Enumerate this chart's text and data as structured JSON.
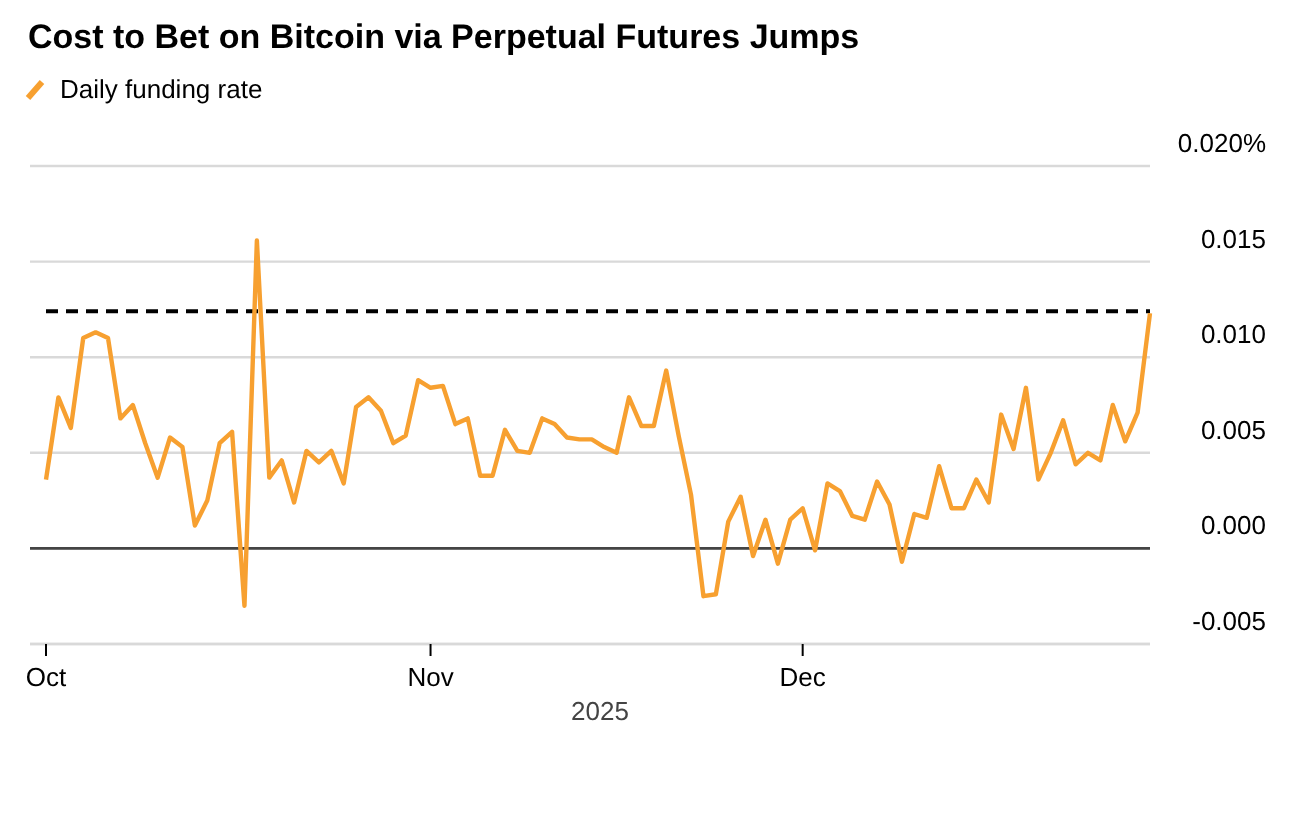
{
  "chart_data": {
    "type": "line",
    "title": "Cost to Bet on Bitcoin via Perpetual Futures Jumps",
    "xlabel": "2025",
    "x": [
      "2025-10-01",
      "2025-10-02",
      "2025-10-03",
      "2025-10-04",
      "2025-10-05",
      "2025-10-06",
      "2025-10-07",
      "2025-10-08",
      "2025-10-09",
      "2025-10-10",
      "2025-10-11",
      "2025-10-12",
      "2025-10-13",
      "2025-10-14",
      "2025-10-15",
      "2025-10-16",
      "2025-10-17",
      "2025-10-18",
      "2025-10-19",
      "2025-10-20",
      "2025-10-21",
      "2025-10-22",
      "2025-10-23",
      "2025-10-24",
      "2025-10-25",
      "2025-10-26",
      "2025-10-27",
      "2025-10-28",
      "2025-10-29",
      "2025-10-30",
      "2025-10-31",
      "2025-11-01",
      "2025-11-02",
      "2025-11-03",
      "2025-11-04",
      "2025-11-05",
      "2025-11-06",
      "2025-11-07",
      "2025-11-08",
      "2025-11-09",
      "2025-11-10",
      "2025-11-11",
      "2025-11-12",
      "2025-11-13",
      "2025-11-14",
      "2025-11-15",
      "2025-11-16",
      "2025-11-17",
      "2025-11-18",
      "2025-11-19",
      "2025-11-20",
      "2025-11-21",
      "2025-11-22",
      "2025-11-23",
      "2025-11-24",
      "2025-11-25",
      "2025-11-26",
      "2025-11-27",
      "2025-11-28",
      "2025-11-29",
      "2025-11-30",
      "2025-12-01",
      "2025-12-02",
      "2025-12-03",
      "2025-12-04",
      "2025-12-05",
      "2025-12-06",
      "2025-12-07",
      "2025-12-08",
      "2025-12-09",
      "2025-12-10",
      "2025-12-11",
      "2025-12-12",
      "2025-12-13",
      "2025-12-14",
      "2025-12-15",
      "2025-12-16",
      "2025-12-17",
      "2025-12-18",
      "2025-12-19",
      "2025-12-20",
      "2025-12-21",
      "2025-12-22",
      "2025-12-23",
      "2025-12-24",
      "2025-12-25",
      "2025-12-26",
      "2025-12-27",
      "2025-12-28",
      "2025-12-29"
    ],
    "series": [
      {
        "name": "Daily funding rate",
        "color": "#f7a030",
        "values": [
          0.0036,
          0.0079,
          0.0063,
          0.011,
          0.0113,
          0.011,
          0.0068,
          0.0075,
          0.0055,
          0.0037,
          0.0058,
          0.0053,
          0.0012,
          0.0025,
          0.0055,
          0.0061,
          -0.003,
          0.0161,
          0.0037,
          0.0046,
          0.0024,
          0.0051,
          0.0045,
          0.0051,
          0.0034,
          0.0074,
          0.0079,
          0.0072,
          0.0055,
          0.0059,
          0.0088,
          0.0084,
          0.0085,
          0.0065,
          0.0068,
          0.0038,
          0.0038,
          0.0062,
          0.0051,
          0.005,
          0.0068,
          0.0065,
          0.0058,
          0.0057,
          0.0057,
          0.0053,
          0.005,
          0.0079,
          0.0064,
          0.0064,
          0.0093,
          0.0059,
          0.0028,
          -0.0025,
          -0.0024,
          0.0014,
          0.0027,
          -0.0004,
          0.0015,
          -0.0008,
          0.0015,
          0.0021,
          -0.0001,
          0.0034,
          0.003,
          0.0017,
          0.0015,
          0.0035,
          0.0023,
          -0.0007,
          0.0018,
          0.0016,
          0.0043,
          0.0021,
          0.0021,
          0.0036,
          0.0024,
          0.007,
          0.0052,
          0.0084,
          0.0036,
          0.005,
          0.0067,
          0.0044,
          0.005,
          0.0046,
          0.0075,
          0.0056,
          0.0071,
          0.0123
        ]
      }
    ],
    "xlim": [
      "2025-10-01",
      "2025-12-29"
    ],
    "xticks": [
      {
        "value": "2025-10-01",
        "label": "Oct"
      },
      {
        "value": "2025-11-01",
        "label": "Nov"
      },
      {
        "value": "2025-12-01",
        "label": "Dec"
      }
    ],
    "ylim": [
      -0.005,
      0.02
    ],
    "yticks": [
      {
        "value": -0.005,
        "label": "-0.005"
      },
      {
        "value": 0,
        "label": "0.000"
      },
      {
        "value": 0.005,
        "label": "0.005"
      },
      {
        "value": 0.01,
        "label": "0.010"
      },
      {
        "value": 0.015,
        "label": "0.015"
      },
      {
        "value": 0.02,
        "label": "0.020%"
      }
    ],
    "ref_lines": [
      {
        "axis": "y",
        "value": 0.0124,
        "color": "#000000",
        "line_style": "dashed"
      },
      {
        "axis": "y",
        "value": 0,
        "color": "#444444",
        "line_style": "solid"
      }
    ],
    "grid": "y",
    "legend": "top left",
    "marker": "none",
    "line_style": "solid"
  }
}
